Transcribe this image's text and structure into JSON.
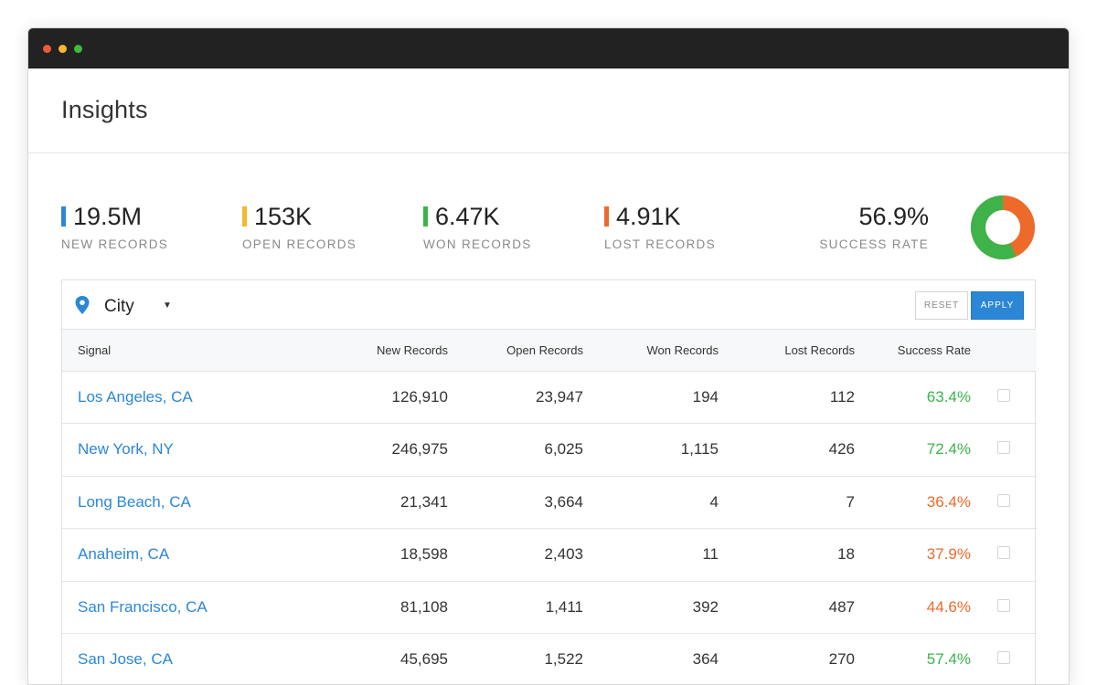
{
  "title": "Insights",
  "colors": {
    "new": "#2b87d6",
    "open": "#f4b731",
    "won": "#3db34a",
    "lost": "#ee6a2a"
  },
  "stats": [
    {
      "value": "19.5M",
      "label": "NEW RECORDS",
      "color": "#2b87d6"
    },
    {
      "value": "153K",
      "label": "OPEN RECORDS",
      "color": "#f4b731"
    },
    {
      "value": "6.47K",
      "label": "WON RECORDS",
      "color": "#3db34a"
    },
    {
      "value": "4.91K",
      "label": "LOST RECORDS",
      "color": "#ee6a2a"
    }
  ],
  "success": {
    "value": "56.9%",
    "label": "SUCCESS RATE",
    "won_fraction": 0.569
  },
  "filter": {
    "icon": "map-pin-icon",
    "label": "City",
    "caret": "▼"
  },
  "buttons": {
    "reset": "RESET",
    "apply": "APPLY"
  },
  "table": {
    "columns": [
      "Signal",
      "New Records",
      "Open Records",
      "Won Records",
      "Lost Records",
      "Success Rate"
    ],
    "rows": [
      {
        "signal": "Los Angeles, CA",
        "new": "126,910",
        "open": "23,947",
        "won": "194",
        "lost": "112",
        "rate": "63.4%",
        "good": true
      },
      {
        "signal": "New York, NY",
        "new": "246,975",
        "open": "6,025",
        "won": "1,115",
        "lost": "426",
        "rate": "72.4%",
        "good": true
      },
      {
        "signal": "Long Beach, CA",
        "new": "21,341",
        "open": "3,664",
        "won": "4",
        "lost": "7",
        "rate": "36.4%",
        "good": false
      },
      {
        "signal": "Anaheim, CA",
        "new": "18,598",
        "open": "2,403",
        "won": "11",
        "lost": "18",
        "rate": "37.9%",
        "good": false
      },
      {
        "signal": "San Francisco, CA",
        "new": "81,108",
        "open": "1,411",
        "won": "392",
        "lost": "487",
        "rate": "44.6%",
        "good": false
      },
      {
        "signal": "San Jose, CA",
        "new": "45,695",
        "open": "1,522",
        "won": "364",
        "lost": "270",
        "rate": "57.4%",
        "good": true
      }
    ]
  }
}
